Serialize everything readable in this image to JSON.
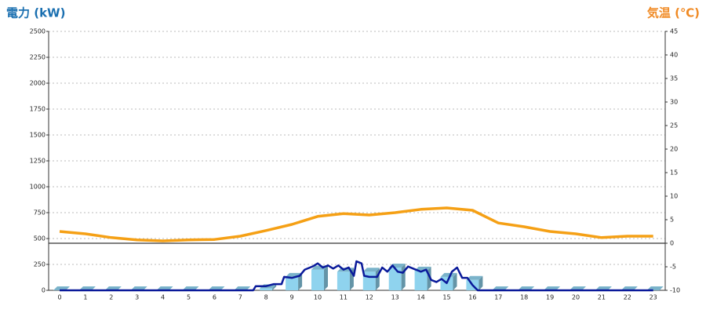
{
  "chart_data": {
    "type": "combo",
    "title_left": "電力 (kW)",
    "title_left_color": "#1a6fb0",
    "title_right": "気温 (℃)",
    "title_right_color": "#f08a24",
    "categories": [
      "0",
      "1",
      "2",
      "3",
      "4",
      "5",
      "6",
      "7",
      "8",
      "9",
      "10",
      "11",
      "12",
      "13",
      "14",
      "15",
      "16",
      "17",
      "18",
      "19",
      "20",
      "21",
      "22",
      "23"
    ],
    "ylim": [
      0,
      2500
    ],
    "yticks": [
      0,
      250,
      500,
      750,
      1000,
      1250,
      1500,
      1750,
      2000,
      2250,
      2500
    ],
    "y2lim": [
      -10,
      45
    ],
    "y2ticks": [
      -10,
      -5,
      0,
      5,
      10,
      15,
      20,
      25,
      30,
      35,
      40,
      45
    ],
    "grid": true,
    "y2_zero_line": true,
    "bars": {
      "color": "#8fd3ee",
      "values": [
        0,
        0,
        0,
        0,
        0,
        0,
        0,
        0,
        20,
        130,
        200,
        180,
        180,
        220,
        190,
        130,
        100,
        0,
        0,
        0,
        0,
        0,
        0,
        0
      ]
    },
    "power_line": {
      "color": "#0a1a9a",
      "x": [
        0,
        7.5,
        7.6,
        8,
        8.3,
        8.6,
        8.7,
        9,
        9.3,
        9.5,
        9.8,
        10,
        10.2,
        10.4,
        10.6,
        10.8,
        11,
        11.2,
        11.4,
        11.5,
        11.7,
        11.8,
        12,
        12.3,
        12.5,
        12.7,
        12.9,
        13.1,
        13.3,
        13.5,
        13.7,
        14,
        14.2,
        14.4,
        14.6,
        14.8,
        15,
        15.2,
        15.4,
        15.6,
        15.8,
        16,
        16.2,
        23
      ],
      "values": [
        0,
        0,
        40,
        40,
        60,
        60,
        130,
        120,
        140,
        200,
        230,
        260,
        220,
        240,
        210,
        240,
        200,
        220,
        140,
        280,
        260,
        140,
        130,
        130,
        220,
        180,
        240,
        180,
        170,
        230,
        210,
        180,
        200,
        100,
        80,
        110,
        70,
        180,
        220,
        120,
        120,
        50,
        0,
        0
      ]
    },
    "temperature": {
      "color": "#f5a015",
      "axis": "y2",
      "values": [
        2.5,
        2,
        1.2,
        0.7,
        0.5,
        0.7,
        0.8,
        1.5,
        2.7,
        4,
        5.7,
        6.3,
        6,
        6.5,
        7.2,
        7.5,
        7,
        4.3,
        3.5,
        2.5,
        2,
        1.2,
        1.5,
        1.5
      ]
    }
  }
}
